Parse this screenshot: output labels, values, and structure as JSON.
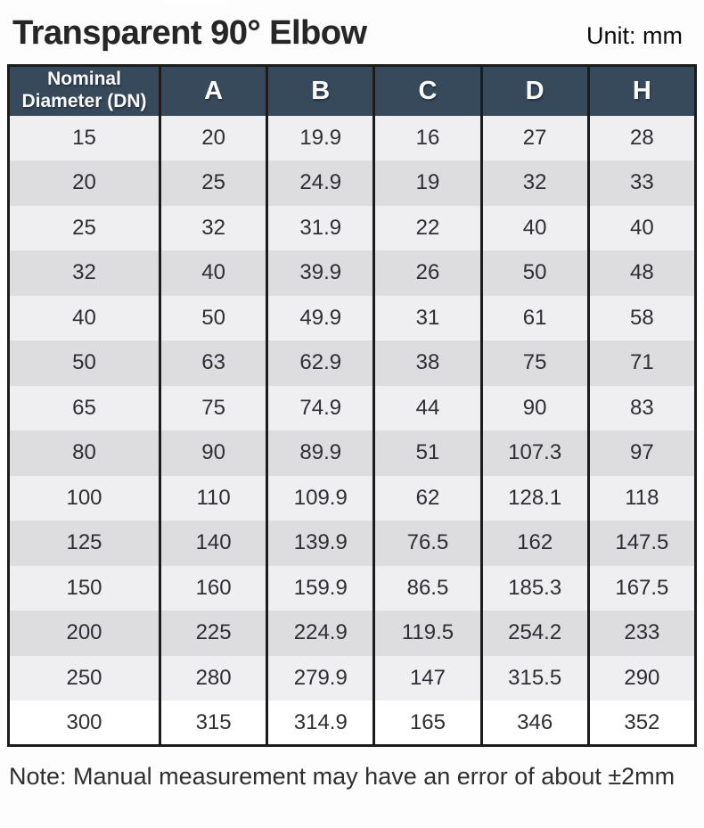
{
  "page": {
    "title": "Transparent 90° Elbow",
    "unit_label": "Unit: mm",
    "note": "Note: Manual measurement may have an error of about ±2mm"
  },
  "table": {
    "header": {
      "dn_line1": "Nominal",
      "dn_line2": "Diameter (DN)",
      "cols": [
        "A",
        "B",
        "C",
        "D",
        "H"
      ]
    },
    "columns_full": [
      "Nominal Diameter (DN)",
      "A",
      "B",
      "C",
      "D",
      "H"
    ],
    "rows": [
      [
        "15",
        "20",
        "19.9",
        "16",
        "27",
        "28"
      ],
      [
        "20",
        "25",
        "24.9",
        "19",
        "32",
        "33"
      ],
      [
        "25",
        "32",
        "31.9",
        "22",
        "40",
        "40"
      ],
      [
        "32",
        "40",
        "39.9",
        "26",
        "50",
        "48"
      ],
      [
        "40",
        "50",
        "49.9",
        "31",
        "61",
        "58"
      ],
      [
        "50",
        "63",
        "62.9",
        "38",
        "75",
        "71"
      ],
      [
        "65",
        "75",
        "74.9",
        "44",
        "90",
        "83"
      ],
      [
        "80",
        "90",
        "89.9",
        "51",
        "107.3",
        "97"
      ],
      [
        "100",
        "110",
        "109.9",
        "62",
        "128.1",
        "118"
      ],
      [
        "125",
        "140",
        "139.9",
        "76.5",
        "162",
        "147.5"
      ],
      [
        "150",
        "160",
        "159.9",
        "86.5",
        "185.3",
        "167.5"
      ],
      [
        "200",
        "225",
        "224.9",
        "119.5",
        "254.2",
        "233"
      ],
      [
        "250",
        "280",
        "279.9",
        "147",
        "315.5",
        "290"
      ],
      [
        "300",
        "315",
        "314.9",
        "165",
        "346",
        "352"
      ]
    ]
  },
  "colors": {
    "header_bg": "#374a5c",
    "row_light": "#efeff1",
    "row_dark": "#dddde0",
    "border": "#1c1c1c"
  }
}
